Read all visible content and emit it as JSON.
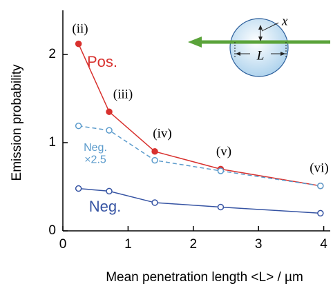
{
  "chart_data": {
    "type": "line",
    "xlabel": "Mean penetration length <L> / µm",
    "ylabel": "Emission probability",
    "xlim": [
      0,
      4.1
    ],
    "ylim": [
      0,
      2.5
    ],
    "xticks": [
      0,
      1,
      2,
      3,
      4
    ],
    "yticks": [
      0,
      1,
      2
    ],
    "series": [
      {
        "name": "Pos.",
        "color": "#d8312e",
        "marker": "filled",
        "dashed": false,
        "x": [
          0.24,
          0.71,
          1.41,
          2.42,
          3.95
        ],
        "values": [
          2.12,
          1.35,
          0.9,
          0.7,
          0.51
        ]
      },
      {
        "name": "Neg. ×2.5",
        "color": "#5b9bcc",
        "marker": "open",
        "dashed": true,
        "x": [
          0.24,
          0.71,
          1.41,
          2.42,
          3.95
        ],
        "values": [
          1.19,
          1.14,
          0.8,
          0.68,
          0.51
        ]
      },
      {
        "name": "Neg.",
        "color": "#3553a3",
        "marker": "open",
        "dashed": false,
        "x": [
          0.24,
          0.71,
          1.41,
          2.42,
          3.95
        ],
        "values": [
          0.48,
          0.45,
          0.32,
          0.27,
          0.2
        ]
      }
    ],
    "annotations": [
      "(ii)",
      "(iii)",
      "(iv)",
      "(v)",
      "(vi)"
    ],
    "diagram_labels": [
      "x",
      "L"
    ]
  }
}
